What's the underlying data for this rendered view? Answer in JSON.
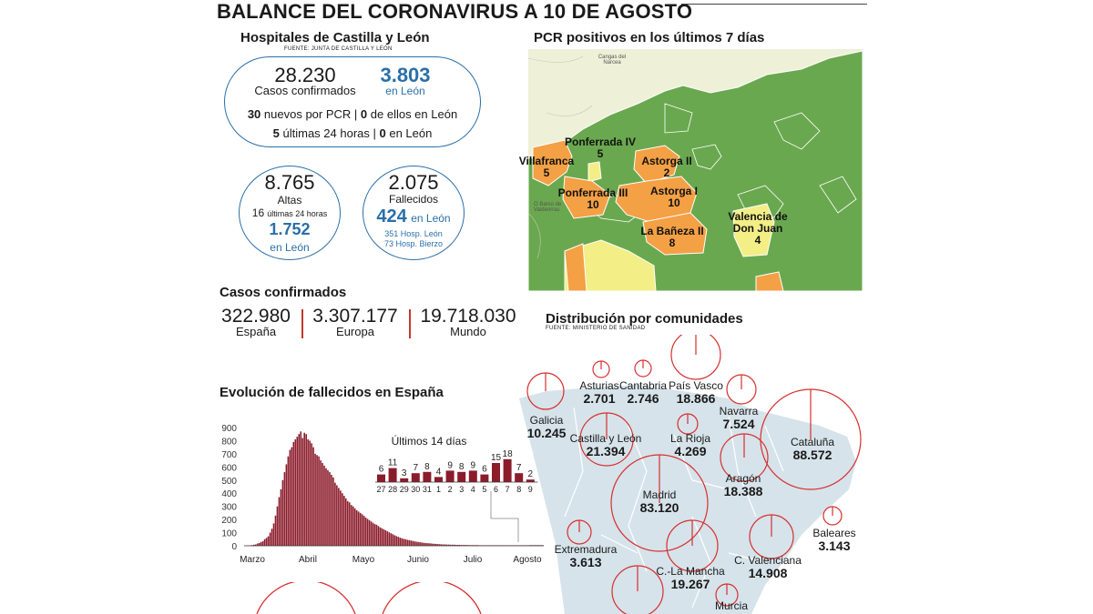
{
  "title": "BALANCE DEL CORONAVIRUS A 10 DE AGOSTO",
  "hospitals": {
    "heading": "Hospitales de Castilla y León",
    "source": "FUENTE: JUNTA DE CASTILLA Y LEÓN",
    "confirmed_total": "28.230",
    "confirmed_label": "Casos confirmados",
    "confirmed_leon": "3.803",
    "leon_label": "en León",
    "pcr_new": "30",
    "pcr_text": "nuevos por PCR |",
    "pcr_leon": "0",
    "pcr_leon_text": "de ellos en León",
    "last24": "5",
    "last24_text": "últimas 24 horas |",
    "last24_leon": "0",
    "last24_leon_text": "en León",
    "discharges_total": "8.765",
    "discharges_label": "Altas",
    "discharges_24_num": "16",
    "discharges_24_text": "últimas 24 horas",
    "discharges_leon": "1.752",
    "discharges_leon_label": "en León",
    "deaths_total": "2.075",
    "deaths_label": "Fallecidos",
    "deaths_leon": "424",
    "deaths_leon_label": "en León",
    "deaths_hosp_leon": "351 Hosp. León",
    "deaths_hosp_bierzo": "73 Hosp. Bierzo"
  },
  "cases": {
    "heading": "Casos confirmados",
    "spain_value": "322.980",
    "spain_label": "España",
    "europe_value": "3.307.177",
    "europe_label": "Europa",
    "world_value": "19.718.030",
    "world_label": "Mundo"
  },
  "pcr_map": {
    "heading": "PCR positivos en los últimos 7 días",
    "areas": [
      {
        "name": "Ponferrada IV",
        "value": "5"
      },
      {
        "name": "Villafranca",
        "value": "5"
      },
      {
        "name": "Astorga II",
        "value": "2"
      },
      {
        "name": "Astorga I",
        "value": "10"
      },
      {
        "name": "Ponferrada III",
        "value": "10"
      },
      {
        "name": "Valencia de",
        "name2": "Don Juan",
        "value": "4"
      },
      {
        "name": "La Bañeza II",
        "value": "8"
      }
    ],
    "places": [
      "Cangas del Narcea",
      "O Barco de Valdeorras"
    ],
    "colors": {
      "green": "#6aa84f",
      "orange": "#f4a045",
      "yellow": "#f3ee86",
      "land": "#eef0d8"
    }
  },
  "communities": {
    "heading": "Distribución por comunidades",
    "source": "FUENTE: MINISTERIO DE SANIDAD",
    "regions": [
      {
        "name": "Asturias",
        "value": "2.701"
      },
      {
        "name": "Cantabria",
        "value": "2.746"
      },
      {
        "name": "País Vasco",
        "value": "18.866"
      },
      {
        "name": "Galicia",
        "value": "10.245"
      },
      {
        "name": "Navarra",
        "value": "7.524"
      },
      {
        "name": "Castilla y León",
        "value": "21.394"
      },
      {
        "name": "La Rioja",
        "value": "4.269"
      },
      {
        "name": "Cataluña",
        "value": "88.572"
      },
      {
        "name": "Aragón",
        "value": "18.388"
      },
      {
        "name": "Madrid",
        "value": "83.120"
      },
      {
        "name": "Extremadura",
        "value": "3.613"
      },
      {
        "name": "C.-La Mancha",
        "value": "19.267"
      },
      {
        "name": "C. Valenciana",
        "value": "14.908"
      },
      {
        "name": "Baleares",
        "value": "3.143"
      },
      {
        "name": "Murcia",
        "value": ""
      }
    ],
    "circle_color": "#d62f2f",
    "map_color": "#d6e3ea"
  },
  "chart_data": {
    "type": "bar",
    "title": "Evolución de fallecidos en España",
    "xlabel": "",
    "ylabel": "",
    "ylim": [
      0,
      900
    ],
    "yticks": [
      "900",
      "800",
      "700",
      "600",
      "500",
      "400",
      "300",
      "200",
      "100",
      "0"
    ],
    "month_labels": [
      "Marzo",
      "Abril",
      "Mayo",
      "Junio",
      "Julio",
      "Agosto"
    ],
    "daily_deaths": [
      0,
      1,
      2,
      3,
      5,
      8,
      10,
      17,
      21,
      28,
      35,
      50,
      60,
      72,
      100,
      130,
      170,
      230,
      300,
      370,
      430,
      500,
      560,
      620,
      680,
      730,
      750,
      790,
      810,
      830,
      850,
      870,
      820,
      860,
      850,
      810,
      800,
      780,
      750,
      700,
      690,
      680,
      650,
      630,
      610,
      590,
      575,
      560,
      540,
      520,
      480,
      460,
      440,
      420,
      400,
      380,
      360,
      340,
      330,
      310,
      300,
      285,
      270,
      260,
      250,
      240,
      228,
      215,
      205,
      195,
      185,
      175,
      165,
      160,
      150,
      140,
      133,
      125,
      118,
      110,
      102,
      95,
      88,
      80,
      74,
      68,
      62,
      57,
      53,
      50,
      46,
      43,
      40,
      37,
      34,
      31,
      29,
      27,
      25,
      23,
      21,
      20,
      19,
      18,
      16,
      15,
      14,
      13,
      12,
      11,
      10,
      10,
      9,
      9,
      8,
      8,
      8,
      7,
      7,
      7,
      6,
      6,
      6,
      6,
      5,
      5,
      5,
      5,
      5,
      5,
      4,
      4,
      4,
      4,
      4,
      4,
      4,
      4,
      4,
      4,
      4,
      4,
      4,
      4,
      4,
      4,
      4,
      4,
      4,
      4,
      4,
      4,
      4,
      4,
      4,
      4,
      4,
      4,
      5,
      5,
      5,
      5,
      5,
      5,
      5,
      5
    ],
    "inset": {
      "title": "Últimos 14 días",
      "categories": [
        "27",
        "28",
        "29",
        "30",
        "31",
        "1",
        "2",
        "3",
        "4",
        "5",
        "6",
        "7",
        "8",
        "9"
      ],
      "values": [
        6,
        11,
        3,
        7,
        8,
        4,
        9,
        8,
        9,
        6,
        15,
        18,
        7,
        2
      ]
    },
    "bar_color": "#8b1c2b"
  }
}
